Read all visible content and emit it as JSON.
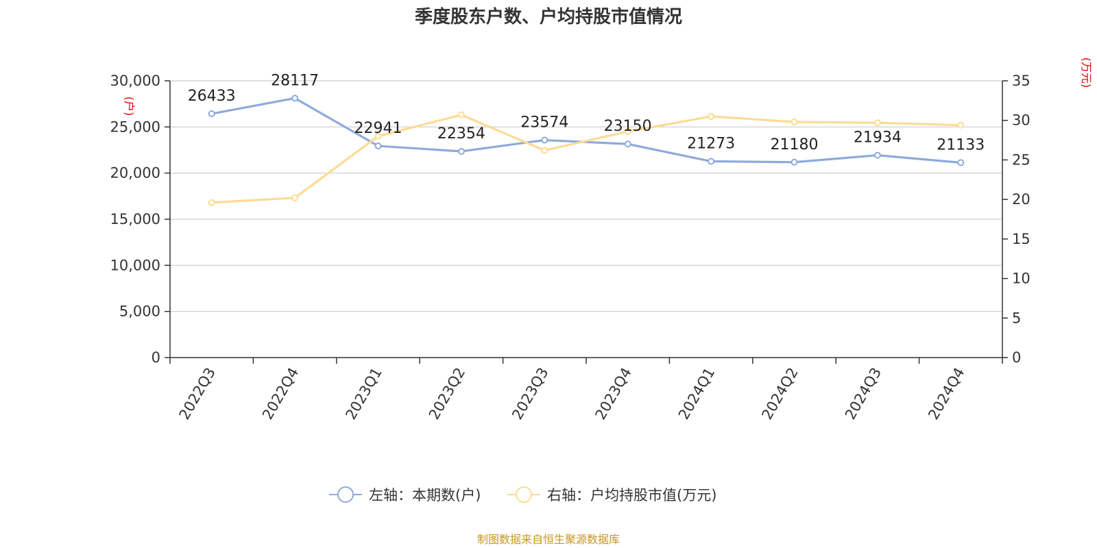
{
  "chart_data": {
    "type": "line",
    "title": "季度股东户数、户均持股市值情况",
    "categories": [
      "2022Q3",
      "2022Q4",
      "2023Q1",
      "2023Q2",
      "2023Q3",
      "2023Q4",
      "2024Q1",
      "2024Q2",
      "2024Q3",
      "2024Q4"
    ],
    "y_left": {
      "unit": "(户)",
      "range": [
        0,
        30000
      ],
      "ticks": [
        "0",
        "5,000",
        "10,000",
        "15,000",
        "20,000",
        "25,000",
        "30,000"
      ]
    },
    "y_right": {
      "unit": "(万元)",
      "range": [
        0,
        35
      ],
      "ticks": [
        "0",
        "5",
        "10",
        "15",
        "20",
        "25",
        "30",
        "35"
      ]
    },
    "series": [
      {
        "name": "左轴：本期数(户)",
        "axis": "left",
        "color": "#8eaadb",
        "values": [
          26433,
          28117,
          22941,
          22354,
          23574,
          23150,
          21273,
          21180,
          21934,
          21133
        ],
        "labels": [
          "26433",
          "28117",
          "22941",
          "22354",
          "23574",
          "23150",
          "21273",
          "21180",
          "21934",
          "21133"
        ]
      },
      {
        "name": "右轴：户均持股市值(万元)",
        "axis": "right",
        "color": "#fddb93",
        "values": [
          19.6,
          20.2,
          28.0,
          30.7,
          26.2,
          28.6,
          30.5,
          29.8,
          29.7,
          29.4
        ]
      }
    ],
    "grid": true,
    "legend_position": "bottom",
    "source": "制图数据来自恒生聚源数据库"
  }
}
